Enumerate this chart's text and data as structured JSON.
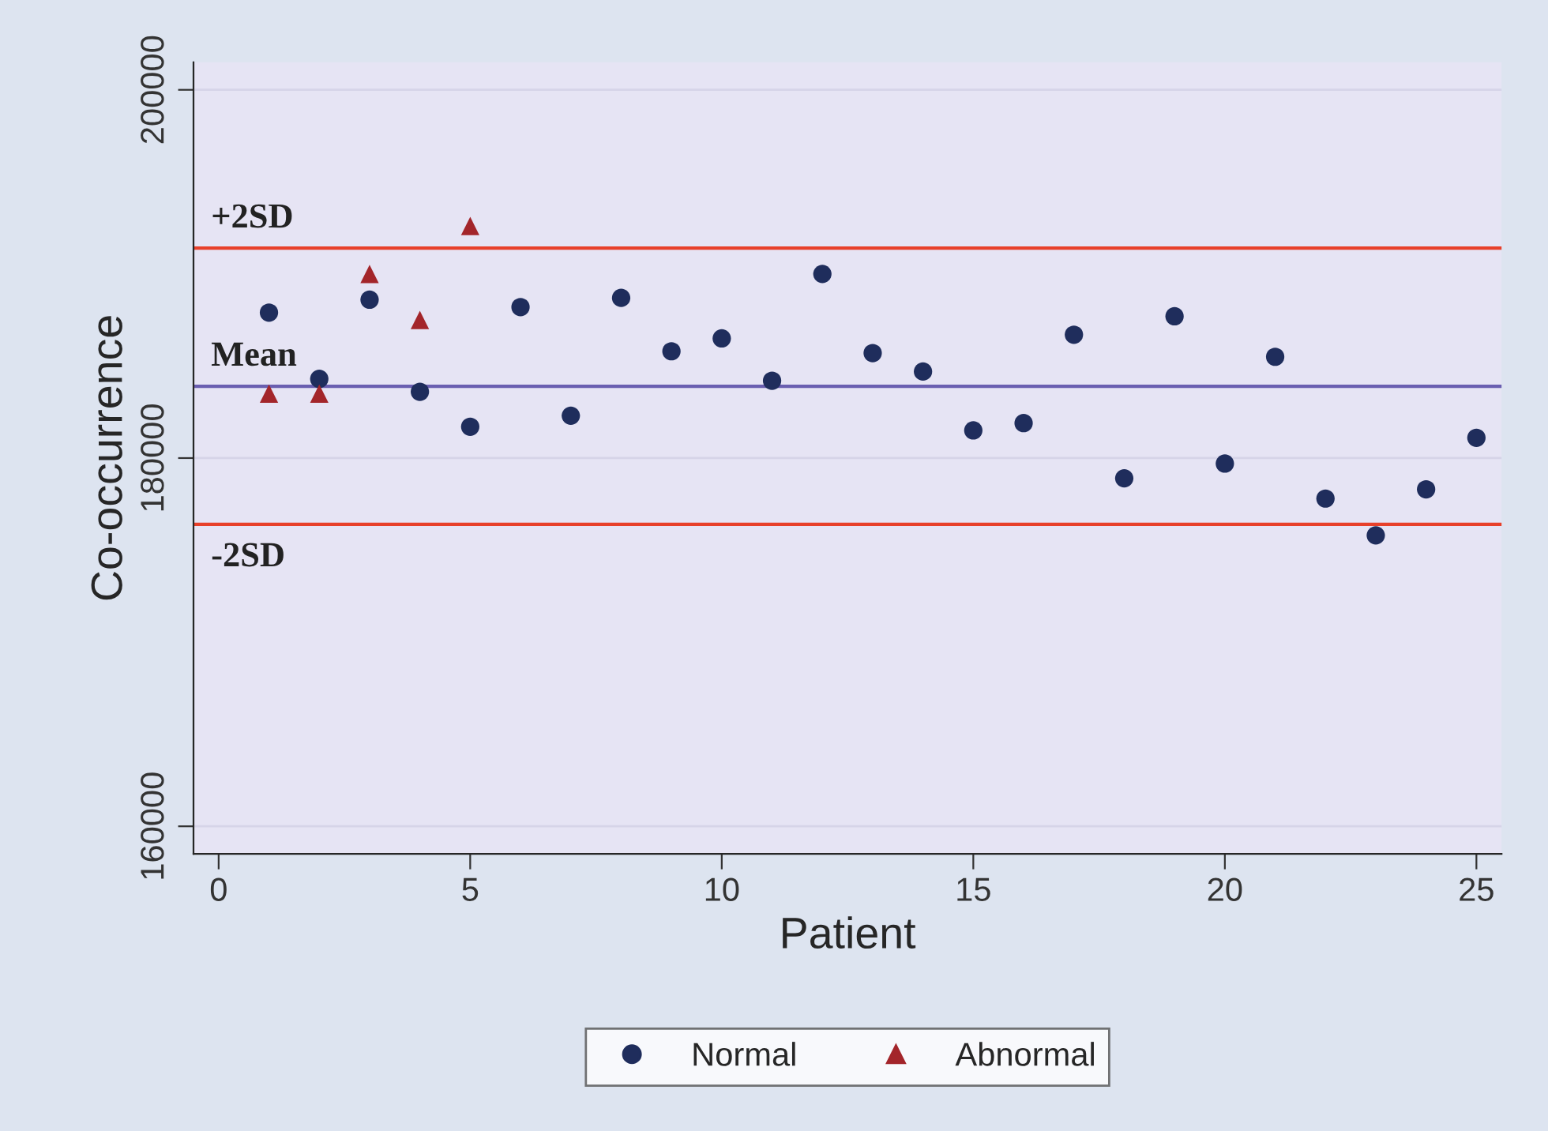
{
  "chart_data": {
    "type": "scatter",
    "xlabel": "Patient",
    "ylabel": "Co-occurrence",
    "xlim": [
      -0.5,
      25.5
    ],
    "xticks": [
      0,
      5,
      10,
      15,
      20,
      25
    ],
    "ylim": [
      158500,
      201500
    ],
    "yticks": [
      160000,
      180000,
      200000
    ],
    "grid": "y",
    "legend": "bottom",
    "series": [
      {
        "name": "Normal",
        "color": "#1f2d5c",
        "marker": "circle",
        "x": [
          1,
          2,
          3,
          4,
          5,
          6,
          7,
          8,
          9,
          10,
          11,
          12,
          13,
          14,
          15,
          16,
          17,
          18,
          19,
          20,
          21,
          22,
          23,
          24,
          25
        ],
        "values": [
          187900,
          184300,
          188600,
          183600,
          181700,
          188200,
          182300,
          188700,
          185800,
          186500,
          184200,
          190000,
          185700,
          184700,
          181500,
          181900,
          186700,
          178900,
          187700,
          179700,
          185500,
          177800,
          175800,
          178300,
          181100
        ]
      },
      {
        "name": "Abnormal",
        "color": "#a3252a",
        "marker": "triangle",
        "x": [
          1,
          2,
          3,
          4,
          5
        ],
        "values": [
          183500,
          183500,
          190000,
          187500,
          192600
        ]
      }
    ],
    "ref_lines": [
      {
        "axis": "y",
        "value": 191400,
        "label": "+2SD",
        "color": "#e8402a"
      },
      {
        "axis": "y",
        "value": 183900,
        "label": "Mean",
        "color": "#6a5fb0"
      },
      {
        "axis": "y",
        "value": 176400,
        "label": "-2SD",
        "color": "#e8402a"
      }
    ]
  }
}
